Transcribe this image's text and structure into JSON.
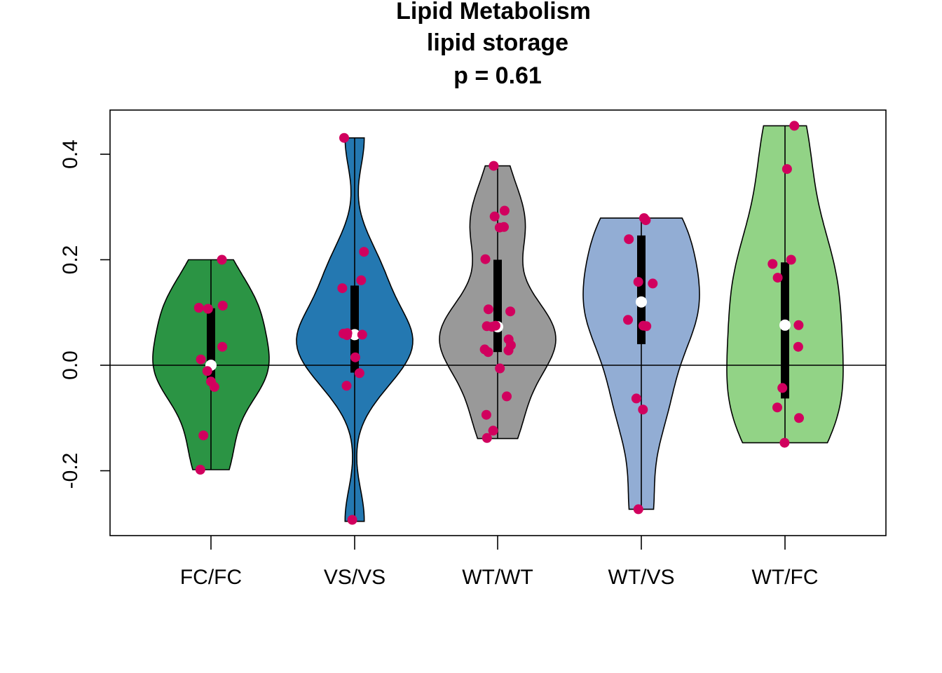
{
  "chart_data": {
    "type": "violin",
    "title": [
      "Lipid Metabolism",
      "lipid storage",
      "p = 0.61"
    ],
    "xlabel": "",
    "ylabel": "",
    "ylim": [
      -0.32,
      0.48
    ],
    "yticks": [
      "-0.2",
      "0.0",
      "0.2",
      "0.4"
    ],
    "reference_line": 0.0,
    "point_color": "#D1005E",
    "median_color": "#FFFFFF",
    "categories": [
      "FC/FC",
      "VS/VS",
      "WT/WT",
      "WT/VS",
      "WT/FC"
    ],
    "groups": [
      {
        "label": "FC/FC",
        "color": "#2B9444",
        "min": -0.198,
        "q1": -0.033,
        "median": 0.0,
        "q3": 0.108,
        "max": 0.2,
        "points": [
          0.2,
          0.113,
          0.109,
          0.107,
          0.035,
          0.011,
          -0.011,
          -0.031,
          -0.041,
          -0.133,
          -0.198
        ]
      },
      {
        "label": "VS/VS",
        "color": "#2478B1",
        "min": -0.296,
        "q1": -0.014,
        "median": 0.058,
        "q3": 0.151,
        "max": 0.431,
        "points": [
          0.431,
          0.215,
          0.161,
          0.146,
          0.061,
          0.06,
          0.058,
          0.057,
          0.015,
          -0.015,
          -0.039,
          -0.293
        ]
      },
      {
        "label": "WT/WT",
        "color": "#999999",
        "min": -0.139,
        "q1": 0.025,
        "median": 0.073,
        "q3": 0.2,
        "max": 0.378,
        "points": [
          0.378,
          0.293,
          0.282,
          0.262,
          0.261,
          0.201,
          0.106,
          0.102,
          0.075,
          0.074,
          0.073,
          0.049,
          0.038,
          0.03,
          0.028,
          0.025,
          -0.006,
          -0.059,
          -0.094,
          -0.124,
          -0.138
        ]
      },
      {
        "label": "WT/VS",
        "color": "#92ADD4",
        "min": -0.273,
        "q1": 0.04,
        "median": 0.12,
        "q3": 0.246,
        "max": 0.279,
        "points": [
          0.279,
          0.275,
          0.239,
          0.158,
          0.155,
          0.086,
          0.075,
          0.074,
          -0.063,
          -0.084,
          -0.273
        ]
      },
      {
        "label": "WT/FC",
        "color": "#92D386",
        "min": -0.147,
        "q1": -0.063,
        "median": 0.076,
        "q3": 0.195,
        "max": 0.454,
        "points": [
          0.454,
          0.372,
          0.2,
          0.192,
          0.166,
          0.076,
          0.035,
          -0.043,
          -0.08,
          -0.1,
          -0.147
        ]
      }
    ]
  }
}
